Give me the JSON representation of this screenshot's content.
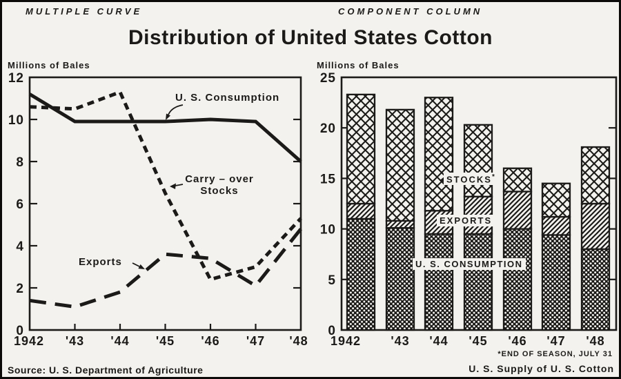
{
  "figure": {
    "left_panel_tag": "MULTIPLE CURVE",
    "right_panel_tag": "COMPONENT COLUMN",
    "title": "Distribution of United States Cotton",
    "source_note": "Source: U. S. Department of Agriculture",
    "footnote": "*END OF SEASON, JULY 31",
    "right_chart_caption": "U. S. Supply of U. S. Cotton"
  },
  "colors": {
    "ink": "#1b1a18",
    "paper": "#f3f2ee"
  },
  "chart_data": [
    {
      "type": "line",
      "panel": "MULTIPLE CURVE",
      "title": "Distribution of United States Cotton",
      "xlabel": "",
      "ylabel": "Millions of Bales",
      "ylim": [
        0,
        12
      ],
      "yticks": [
        0,
        2,
        4,
        6,
        8,
        10,
        12
      ],
      "x": [
        1942,
        1943,
        1944,
        1945,
        1946,
        1947,
        1948
      ],
      "x_tick_labels": [
        "1942",
        "'43",
        "'44",
        "'45",
        "'46",
        "'47",
        "'48"
      ],
      "grid": false,
      "legend_position": "inline-annotations",
      "series": [
        {
          "name": "U. S. Consumption",
          "line_style": "solid",
          "values": [
            11.2,
            9.9,
            9.9,
            9.9,
            10.0,
            9.9,
            8.0
          ]
        },
        {
          "name": "Carry-over Stocks",
          "line_style": "dashed",
          "values": [
            10.6,
            10.5,
            11.3,
            6.5,
            2.4,
            3.0,
            5.3
          ]
        },
        {
          "name": "Exports",
          "line_style": "long-dash",
          "values": [
            1.4,
            1.1,
            1.8,
            3.6,
            3.4,
            2.1,
            4.8
          ]
        }
      ],
      "annotations": {
        "consumption": "U. S. Consumption",
        "carry_over_line1": "Carry – over",
        "carry_over_line2": "Stocks",
        "exports": "Exports"
      }
    },
    {
      "type": "bar",
      "stacked": true,
      "panel": "COMPONENT COLUMN",
      "title": "U. S. Supply of U. S. Cotton",
      "xlabel": "",
      "ylabel": "Millions of Bales",
      "ylim": [
        0,
        25
      ],
      "yticks": [
        0,
        5,
        10,
        15,
        20,
        25
      ],
      "x": [
        1942,
        1943,
        1944,
        1945,
        1946,
        1947,
        1948
      ],
      "x_tick_labels": [
        "1942",
        "'43",
        "'44",
        "'45",
        "'46",
        "'47",
        "'48"
      ],
      "grid": false,
      "series": [
        {
          "name": "U.S. CONSUMPTION",
          "pattern": "dense-dot",
          "values": [
            11.0,
            10.1,
            9.5,
            9.5,
            10.0,
            9.4,
            8.0
          ]
        },
        {
          "name": "EXPORTS",
          "pattern": "diagonal-hatch",
          "values": [
            1.5,
            0.7,
            2.3,
            3.7,
            3.7,
            1.8,
            4.5
          ]
        },
        {
          "name": "STOCKS",
          "pattern": "crosshatch",
          "values": [
            10.8,
            11.0,
            11.2,
            7.1,
            2.3,
            3.3,
            5.6
          ]
        }
      ],
      "totals": [
        23.3,
        21.8,
        23.0,
        20.3,
        16.0,
        14.5,
        18.1
      ],
      "annotations": {
        "stocks": "STOCKS",
        "stocks_footnote_marker": "*",
        "exports": "EXPORTS",
        "consumption": "U. S. CONSUMPTION"
      }
    }
  ]
}
